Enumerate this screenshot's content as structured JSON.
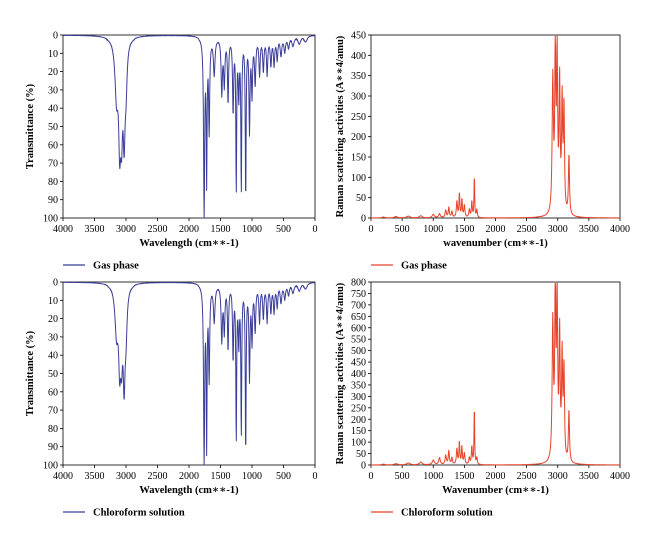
{
  "chart_data": [
    {
      "id": "ir-gas",
      "type": "line",
      "xlabel": "Wavelength (cm∗∗-1)",
      "ylabel": "Transmittance (%)",
      "xlim": [
        4000,
        0
      ],
      "ylim": [
        0,
        100
      ],
      "y_inverted": true,
      "xticks": [
        4000,
        3500,
        3000,
        2500,
        2000,
        1500,
        1000,
        500,
        0
      ],
      "yticks": [
        0,
        10,
        20,
        30,
        40,
        50,
        60,
        70,
        80,
        90,
        100
      ],
      "grid": false,
      "legend_position": "bottom-left",
      "series": [
        {
          "name": "Gas phase",
          "color": "#3b3d9a",
          "baseline": 0,
          "x_range": [
            4000,
            0
          ],
          "peaks": [
            [
              3150,
              30,
              30
            ],
            [
              3100,
              50,
              20
            ],
            [
              3070,
              40,
              18
            ],
            [
              3030,
              48,
              18
            ],
            [
              3000,
              22,
              20
            ],
            [
              1760,
              98,
              10
            ],
            [
              1720,
              75,
              8
            ],
            [
              1680,
              50,
              10
            ],
            [
              1600,
              20,
              15
            ],
            [
              1480,
              30,
              12
            ],
            [
              1440,
              25,
              12
            ],
            [
              1380,
              35,
              10
            ],
            [
              1300,
              40,
              10
            ],
            [
              1250,
              82,
              8
            ],
            [
              1210,
              30,
              10
            ],
            [
              1170,
              82,
              8
            ],
            [
              1100,
              87,
              8
            ],
            [
              1040,
              50,
              10
            ],
            [
              1000,
              30,
              10
            ],
            [
              950,
              25,
              12
            ],
            [
              880,
              20,
              12
            ],
            [
              820,
              18,
              12
            ],
            [
              760,
              20,
              12
            ],
            [
              700,
              15,
              12
            ],
            [
              650,
              15,
              12
            ],
            [
              600,
              12,
              12
            ],
            [
              540,
              10,
              15
            ],
            [
              480,
              8,
              15
            ],
            [
              420,
              6,
              15
            ],
            [
              350,
              5,
              20
            ],
            [
              250,
              4,
              25
            ],
            [
              150,
              3,
              30
            ]
          ]
        }
      ]
    },
    {
      "id": "raman-gas",
      "type": "line",
      "xlabel": "wavenumber (cm∗∗-1)",
      "ylabel": "Raman scattering activities (A∗∗4/amu)",
      "xlim": [
        0,
        4000
      ],
      "ylim": [
        0,
        450
      ],
      "xticks": [
        0,
        500,
        1000,
        1500,
        2000,
        2500,
        3000,
        3500,
        4000
      ],
      "yticks": [
        0,
        50,
        100,
        150,
        200,
        250,
        300,
        350,
        400,
        450
      ],
      "grid": false,
      "legend_position": "bottom-left",
      "series": [
        {
          "name": "Gas phase",
          "color": "#e8432a",
          "baseline": 0,
          "x_range": [
            0,
            4000
          ],
          "peaks": [
            [
              200,
              2,
              30
            ],
            [
              400,
              3,
              30
            ],
            [
              600,
              4,
              30
            ],
            [
              800,
              5,
              25
            ],
            [
              1000,
              8,
              20
            ],
            [
              1100,
              10,
              15
            ],
            [
              1200,
              18,
              12
            ],
            [
              1250,
              25,
              10
            ],
            [
              1300,
              15,
              10
            ],
            [
              1380,
              40,
              10
            ],
            [
              1420,
              60,
              8
            ],
            [
              1460,
              45,
              8
            ],
            [
              1500,
              30,
              10
            ],
            [
              1580,
              20,
              10
            ],
            [
              1620,
              40,
              8
            ],
            [
              1660,
              105,
              6
            ],
            [
              1700,
              20,
              8
            ],
            [
              2920,
              330,
              12
            ],
            [
              2960,
              400,
              10
            ],
            [
              2990,
              380,
              10
            ],
            [
              3030,
              320,
              10
            ],
            [
              3070,
              270,
              10
            ],
            [
              3100,
              260,
              10
            ],
            [
              3180,
              150,
              10
            ]
          ]
        }
      ]
    },
    {
      "id": "ir-chloroform",
      "type": "line",
      "xlabel": "Wavelength (cm∗∗-1)",
      "ylabel": "Transmittance (%)",
      "xlim": [
        4000,
        0
      ],
      "ylim": [
        0,
        100
      ],
      "y_inverted": true,
      "xticks": [
        4000,
        3500,
        3000,
        2500,
        2000,
        1500,
        1000,
        500,
        0
      ],
      "yticks": [
        0,
        10,
        20,
        30,
        40,
        50,
        60,
        70,
        80,
        90,
        100
      ],
      "grid": false,
      "legend_position": "bottom-left",
      "series": [
        {
          "name": "Chloroform solution",
          "color": "#3b3d9a",
          "baseline": 0,
          "x_range": [
            4000,
            0
          ],
          "peaks": [
            [
              3150,
              25,
              30
            ],
            [
              3100,
              38,
              20
            ],
            [
              3070,
              30,
              18
            ],
            [
              3030,
              48,
              18
            ],
            [
              3000,
              22,
              20
            ],
            [
              1760,
              98,
              10
            ],
            [
              1720,
              85,
              8
            ],
            [
              1680,
              50,
              10
            ],
            [
              1600,
              20,
              15
            ],
            [
              1480,
              30,
              12
            ],
            [
              1440,
              25,
              12
            ],
            [
              1380,
              35,
              10
            ],
            [
              1300,
              40,
              10
            ],
            [
              1250,
              83,
              8
            ],
            [
              1210,
              30,
              10
            ],
            [
              1170,
              80,
              8
            ],
            [
              1100,
              91,
              8
            ],
            [
              1040,
              50,
              10
            ],
            [
              1000,
              30,
              10
            ],
            [
              950,
              25,
              12
            ],
            [
              880,
              20,
              12
            ],
            [
              820,
              18,
              12
            ],
            [
              760,
              20,
              12
            ],
            [
              700,
              15,
              12
            ],
            [
              650,
              15,
              12
            ],
            [
              600,
              12,
              12
            ],
            [
              540,
              10,
              15
            ],
            [
              480,
              8,
              15
            ],
            [
              420,
              6,
              15
            ],
            [
              350,
              5,
              20
            ],
            [
              250,
              4,
              25
            ],
            [
              150,
              3,
              30
            ]
          ]
        }
      ]
    },
    {
      "id": "raman-chloroform",
      "type": "line",
      "xlabel": "Wavenumber (cm∗∗-1)",
      "ylabel": "Raman scattering activities (A∗∗4/amu)",
      "xlim": [
        0,
        4000
      ],
      "ylim": [
        0,
        800
      ],
      "xticks": [
        0,
        500,
        1000,
        1500,
        2000,
        2500,
        3000,
        3500,
        4000
      ],
      "yticks": [
        0,
        50,
        100,
        150,
        200,
        250,
        300,
        350,
        400,
        450,
        500,
        550,
        600,
        650,
        700,
        750,
        800
      ],
      "grid": false,
      "legend_position": "bottom-left",
      "series": [
        {
          "name": "Chloroform solution",
          "color": "#e8432a",
          "baseline": 0,
          "x_range": [
            0,
            4000
          ],
          "peaks": [
            [
              200,
              3,
              30
            ],
            [
              400,
              5,
              30
            ],
            [
              600,
              8,
              30
            ],
            [
              800,
              12,
              25
            ],
            [
              1000,
              20,
              20
            ],
            [
              1100,
              30,
              15
            ],
            [
              1200,
              40,
              12
            ],
            [
              1250,
              60,
              10
            ],
            [
              1300,
              30,
              10
            ],
            [
              1380,
              70,
              10
            ],
            [
              1420,
              100,
              8
            ],
            [
              1460,
              80,
              8
            ],
            [
              1500,
              50,
              10
            ],
            [
              1580,
              30,
              10
            ],
            [
              1620,
              80,
              8
            ],
            [
              1660,
              255,
              6
            ],
            [
              1700,
              30,
              8
            ],
            [
              2920,
              600,
              12
            ],
            [
              2960,
              760,
              10
            ],
            [
              2990,
              700,
              10
            ],
            [
              3030,
              550,
              10
            ],
            [
              3070,
              450,
              10
            ],
            [
              3100,
              400,
              10
            ],
            [
              3180,
              230,
              10
            ]
          ]
        }
      ]
    }
  ]
}
